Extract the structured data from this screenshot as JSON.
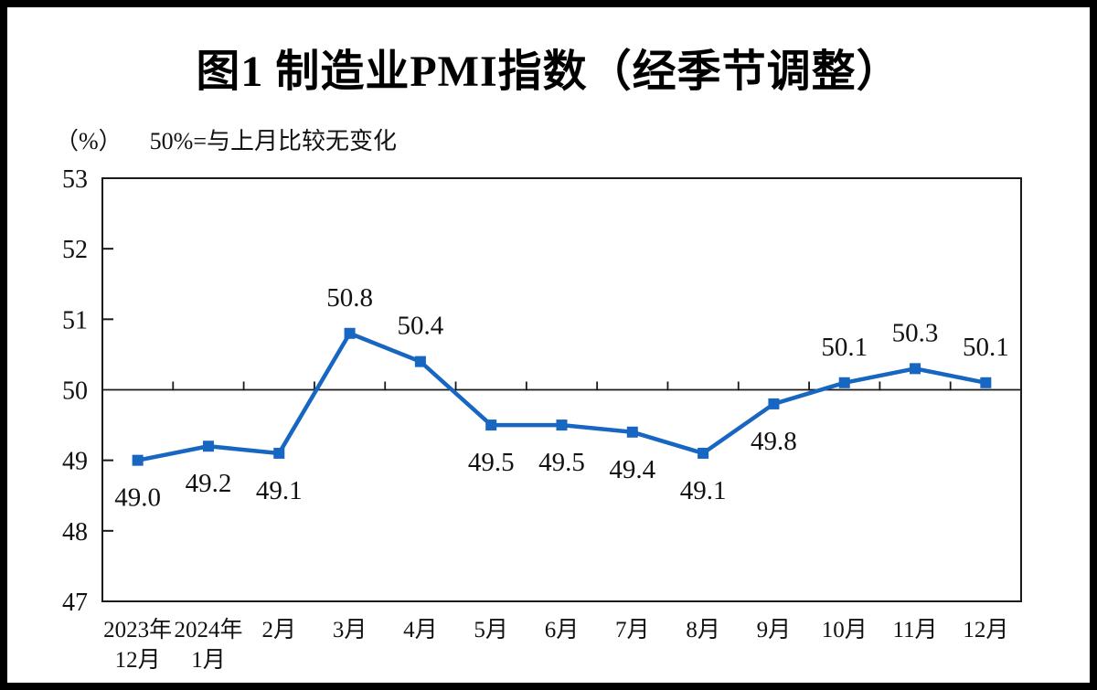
{
  "figure": {
    "title": "图1  制造业PMI指数（经季节调整）",
    "unit_label": "（%）",
    "reference_note": "50%=与上月比较无变化"
  },
  "chart_data": {
    "type": "line",
    "title": "图1  制造业PMI指数（经季节调整）",
    "ylabel_unit": "（%）",
    "annotation": "50%=与上月比较无变化",
    "categories": [
      "2023年\n12月",
      "2024年\n1月",
      "2月",
      "3月",
      "4月",
      "5月",
      "6月",
      "7月",
      "8月",
      "9月",
      "10月",
      "11月",
      "12月"
    ],
    "series": [
      {
        "name": "制造业PMI指数",
        "values": [
          49.0,
          49.2,
          49.1,
          50.8,
          50.4,
          49.5,
          49.5,
          49.4,
          49.1,
          49.8,
          50.1,
          50.3,
          50.1
        ]
      }
    ],
    "data_labels": [
      "49.0",
      "49.2",
      "49.1",
      "50.8",
      "50.4",
      "49.5",
      "49.5",
      "49.4",
      "49.1",
      "49.8",
      "50.1",
      "50.3",
      "50.1"
    ],
    "label_positions": [
      "below",
      "below",
      "below",
      "above",
      "above",
      "below",
      "below",
      "below",
      "below",
      "below",
      "above",
      "above",
      "above"
    ],
    "ylim": [
      47,
      53
    ],
    "yticks": [
      47,
      48,
      49,
      50,
      51,
      52,
      53
    ],
    "reference_line": 50,
    "grid": false,
    "legend_position": "none",
    "marker": "square",
    "line_color": "#1666C2",
    "axis_color": "#1a1a1a"
  }
}
